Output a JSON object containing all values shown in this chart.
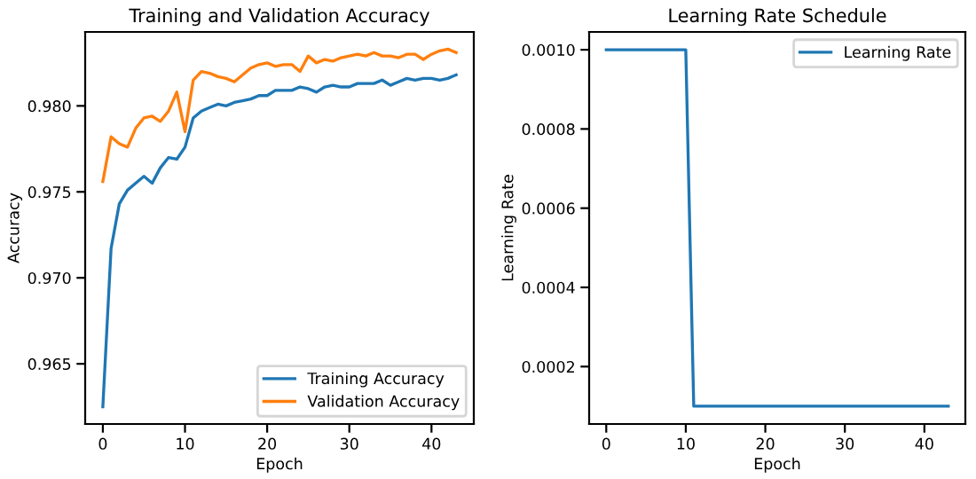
{
  "chart_data": [
    {
      "type": "line",
      "title": "Training and Validation Accuracy",
      "xlabel": "Epoch",
      "ylabel": "Accuracy",
      "x": [
        0,
        1,
        2,
        3,
        4,
        5,
        6,
        7,
        8,
        9,
        10,
        11,
        12,
        13,
        14,
        15,
        16,
        17,
        18,
        19,
        20,
        21,
        22,
        23,
        24,
        25,
        26,
        27,
        28,
        29,
        30,
        31,
        32,
        33,
        34,
        35,
        36,
        37,
        38,
        39,
        40,
        41,
        42,
        43
      ],
      "series": [
        {
          "name": "Training Accuracy",
          "color": "#1f77b4",
          "values": [
            0.9625,
            0.9717,
            0.9743,
            0.9751,
            0.9755,
            0.9759,
            0.9755,
            0.9764,
            0.977,
            0.9769,
            0.9776,
            0.9793,
            0.9797,
            0.9799,
            0.9801,
            0.98,
            0.9802,
            0.9803,
            0.9804,
            0.9806,
            0.9806,
            0.9809,
            0.9809,
            0.9809,
            0.9811,
            0.981,
            0.9808,
            0.9811,
            0.9812,
            0.9811,
            0.9811,
            0.9813,
            0.9813,
            0.9813,
            0.9815,
            0.9812,
            0.9814,
            0.9816,
            0.9815,
            0.9816,
            0.9816,
            0.9815,
            0.9816,
            0.9818
          ]
        },
        {
          "name": "Validation Accuracy",
          "color": "#ff7f0e",
          "values": [
            0.9756,
            0.9782,
            0.9778,
            0.9776,
            0.9787,
            0.9793,
            0.9794,
            0.9791,
            0.9797,
            0.9808,
            0.9785,
            0.9815,
            0.982,
            0.9819,
            0.9817,
            0.9816,
            0.9814,
            0.9818,
            0.9822,
            0.9824,
            0.9825,
            0.9823,
            0.9824,
            0.9824,
            0.982,
            0.9829,
            0.9825,
            0.9827,
            0.9826,
            0.9828,
            0.9829,
            0.983,
            0.9829,
            0.9831,
            0.9829,
            0.9829,
            0.9828,
            0.983,
            0.983,
            0.9827,
            0.983,
            0.9832,
            0.9833,
            0.9831
          ]
        }
      ],
      "xlim": [
        -2.15,
        45.15
      ],
      "xticks": [
        0,
        10,
        20,
        30,
        40
      ],
      "ylim": [
        0.9615,
        0.9843
      ],
      "yticks": [
        {
          "value": 0.965,
          "label": "0.965"
        },
        {
          "value": 0.97,
          "label": "0.970"
        },
        {
          "value": 0.975,
          "label": "0.975"
        },
        {
          "value": 0.98,
          "label": "0.980"
        }
      ],
      "legend": "lower right",
      "grid": false
    },
    {
      "type": "line",
      "title": "Learning Rate Schedule",
      "xlabel": "Epoch",
      "ylabel": "Learning Rate",
      "x": [
        0,
        1,
        2,
        3,
        4,
        5,
        6,
        7,
        8,
        9,
        10,
        11,
        12,
        13,
        14,
        15,
        16,
        17,
        18,
        19,
        20,
        21,
        22,
        23,
        24,
        25,
        26,
        27,
        28,
        29,
        30,
        31,
        32,
        33,
        34,
        35,
        36,
        37,
        38,
        39,
        40,
        41,
        42,
        43
      ],
      "series": [
        {
          "name": "Learning Rate",
          "color": "#1f77b4",
          "values": [
            0.001,
            0.001,
            0.001,
            0.001,
            0.001,
            0.001,
            0.001,
            0.001,
            0.001,
            0.001,
            0.001,
            0.0001,
            0.0001,
            0.0001,
            0.0001,
            0.0001,
            0.0001,
            0.0001,
            0.0001,
            0.0001,
            0.0001,
            0.0001,
            0.0001,
            0.0001,
            0.0001,
            0.0001,
            0.0001,
            0.0001,
            0.0001,
            0.0001,
            0.0001,
            0.0001,
            0.0001,
            0.0001,
            0.0001,
            0.0001,
            0.0001,
            0.0001,
            0.0001,
            0.0001,
            0.0001,
            0.0001,
            0.0001,
            0.0001
          ]
        }
      ],
      "xlim": [
        -2.15,
        45.15
      ],
      "xticks": [
        0,
        10,
        20,
        30,
        40
      ],
      "ylim": [
        5.5e-05,
        0.001045
      ],
      "yticks": [
        {
          "value": 0.0002,
          "label": "0.0002"
        },
        {
          "value": 0.0004,
          "label": "0.0004"
        },
        {
          "value": 0.0006,
          "label": "0.0006"
        },
        {
          "value": 0.0008,
          "label": "0.0008"
        },
        {
          "value": 0.001,
          "label": "0.0010"
        }
      ],
      "legend": "upper right",
      "grid": false
    }
  ]
}
